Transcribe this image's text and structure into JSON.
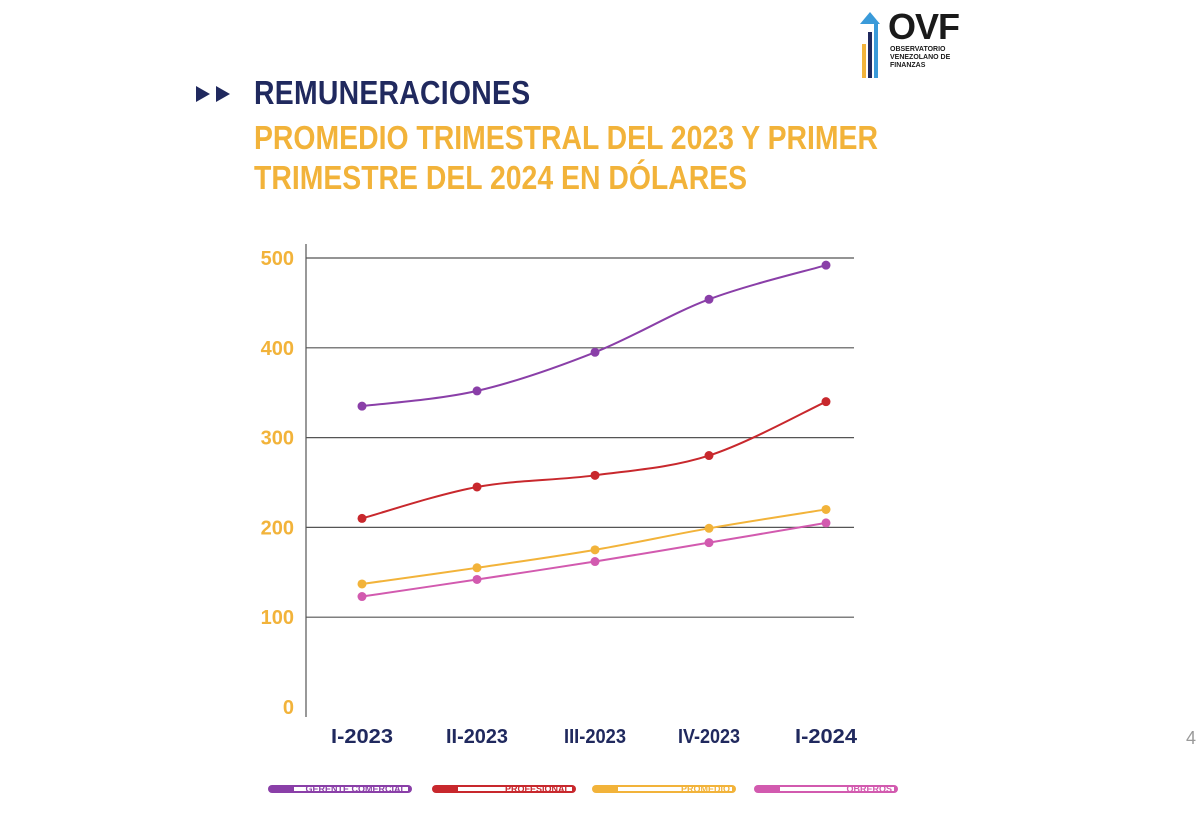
{
  "header": {
    "section_title": "REMUNERACIONES",
    "subtitle_line1": "PROMEDIO TRIMESTRAL DEL 2023 Y PRIMER",
    "subtitle_line2": "TRIMESTRE DEL 2024 EN DÓLARES"
  },
  "logo": {
    "name": "OVF",
    "subtitle": "OBSERVATORIO\nVENEZOLANO DE\nFINANZAS"
  },
  "page_number": "4",
  "colors": {
    "title": "#20295e",
    "accent": "#f2b33a",
    "grid": "#555555"
  },
  "chart_data": {
    "type": "line",
    "categories": [
      "I-2023",
      "II-2023",
      "III-2023",
      "IV-2023",
      "I-2024"
    ],
    "ylim": [
      0,
      500
    ],
    "yticks": [
      0,
      100,
      200,
      300,
      400,
      500
    ],
    "grid": true,
    "legend_position": "bottom",
    "series": [
      {
        "name": "GERENTE COMERCIAL",
        "color": "#8a3fa8",
        "values": [
          335,
          352,
          395,
          454,
          492
        ]
      },
      {
        "name": "PROFESIONAL",
        "color": "#c8282d",
        "values": [
          210,
          245,
          258,
          280,
          340
        ]
      },
      {
        "name": "PROMEDIO",
        "color": "#f2b33a",
        "values": [
          137,
          155,
          175,
          199,
          220
        ]
      },
      {
        "name": "OBREROS",
        "color": "#d25aaf",
        "values": [
          123,
          142,
          162,
          183,
          205
        ]
      }
    ]
  }
}
